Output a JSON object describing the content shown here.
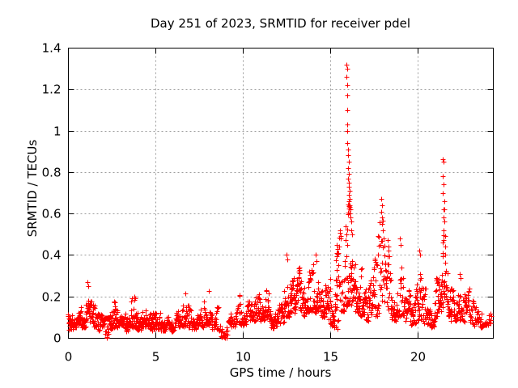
{
  "chart_data": {
    "type": "scatter",
    "title": "Day 251 of 2023, SRMTID for receiver pdel",
    "xlabel": "GPS time / hours",
    "ylabel": "SRMTID / TECUs",
    "xlim": [
      0,
      24.3
    ],
    "ylim": [
      0,
      1.4
    ],
    "xticks": [
      {
        "v": 0,
        "label": "0"
      },
      {
        "v": 5,
        "label": "5"
      },
      {
        "v": 10,
        "label": "10"
      },
      {
        "v": 15,
        "label": "15"
      },
      {
        "v": 20,
        "label": "20"
      }
    ],
    "yticks": [
      {
        "v": 0,
        "label": "0"
      },
      {
        "v": 0.2,
        "label": "0.2"
      },
      {
        "v": 0.4,
        "label": "0.4"
      },
      {
        "v": 0.6,
        "label": "0.6"
      },
      {
        "v": 0.8,
        "label": "0.8"
      },
      {
        "v": 1,
        "label": "1"
      },
      {
        "v": 1.2,
        "label": "1.2"
      },
      {
        "v": 1.4,
        "label": "1.4"
      }
    ],
    "grid": true,
    "legend": "none",
    "colors": {
      "marker": "#ff0000",
      "axis": "#000000",
      "grid": "#9b9b9b",
      "background": "#ffffff",
      "text": "#000000"
    },
    "marker": {
      "shape": "plus",
      "size": 7
    },
    "series": [
      {
        "name": "SRMTID",
        "walks": 2,
        "seed": 20230911,
        "band_bins": [
          [
            0.0,
            0.3,
            0.04,
            0.16,
            28
          ],
          [
            0.3,
            0.65,
            0.05,
            0.15,
            30
          ],
          [
            0.65,
            1.0,
            0.05,
            0.18,
            30
          ],
          [
            1.0,
            1.35,
            0.07,
            0.26,
            30
          ],
          [
            1.35,
            1.7,
            0.05,
            0.16,
            30
          ],
          [
            1.7,
            2.05,
            0.03,
            0.12,
            28
          ],
          [
            2.05,
            2.35,
            0.01,
            0.1,
            24
          ],
          [
            2.35,
            2.6,
            0.04,
            0.15,
            26
          ],
          [
            2.6,
            2.85,
            0.05,
            0.21,
            28
          ],
          [
            2.85,
            3.2,
            0.04,
            0.13,
            30
          ],
          [
            3.2,
            3.5,
            0.03,
            0.12,
            28
          ],
          [
            3.5,
            3.85,
            0.05,
            0.2,
            30
          ],
          [
            3.85,
            4.2,
            0.04,
            0.14,
            30
          ],
          [
            4.2,
            4.65,
            0.05,
            0.2,
            32
          ],
          [
            4.65,
            4.95,
            0.03,
            0.12,
            28
          ],
          [
            4.95,
            5.3,
            0.04,
            0.16,
            30
          ],
          [
            5.3,
            5.7,
            0.03,
            0.13,
            30
          ],
          [
            5.7,
            6.1,
            0.03,
            0.11,
            30
          ],
          [
            6.1,
            6.5,
            0.04,
            0.13,
            30
          ],
          [
            6.5,
            6.95,
            0.05,
            0.21,
            32
          ],
          [
            6.95,
            7.35,
            0.04,
            0.14,
            30
          ],
          [
            7.35,
            7.75,
            0.05,
            0.17,
            30
          ],
          [
            7.75,
            8.2,
            0.06,
            0.22,
            32
          ],
          [
            8.2,
            8.6,
            0.04,
            0.15,
            28
          ],
          [
            8.6,
            9.15,
            0.0,
            0.1,
            20
          ],
          [
            9.15,
            9.6,
            0.05,
            0.16,
            26
          ],
          [
            9.6,
            10.05,
            0.06,
            0.22,
            30
          ],
          [
            10.05,
            10.45,
            0.06,
            0.18,
            30
          ],
          [
            10.45,
            10.85,
            0.08,
            0.23,
            32
          ],
          [
            10.85,
            11.25,
            0.07,
            0.21,
            32
          ],
          [
            11.25,
            11.6,
            0.08,
            0.23,
            30
          ],
          [
            11.6,
            11.95,
            0.04,
            0.16,
            30
          ],
          [
            11.95,
            12.35,
            0.07,
            0.2,
            30
          ],
          [
            12.35,
            12.7,
            0.1,
            0.38,
            30
          ],
          [
            12.7,
            13.0,
            0.12,
            0.3,
            30
          ],
          [
            13.0,
            13.3,
            0.13,
            0.35,
            30
          ],
          [
            13.3,
            13.65,
            0.1,
            0.28,
            30
          ],
          [
            13.65,
            14.0,
            0.12,
            0.33,
            30
          ],
          [
            14.0,
            14.35,
            0.12,
            0.36,
            30
          ],
          [
            14.35,
            14.7,
            0.1,
            0.33,
            30
          ],
          [
            14.7,
            15.0,
            0.08,
            0.38,
            28
          ],
          [
            15.0,
            15.25,
            0.05,
            0.18,
            22
          ],
          [
            15.25,
            15.45,
            0.04,
            0.45,
            24
          ],
          [
            15.45,
            15.8,
            0.12,
            0.52,
            26
          ],
          [
            15.8,
            16.1,
            0.15,
            0.65,
            32
          ],
          [
            16.1,
            16.4,
            0.15,
            0.55,
            32
          ],
          [
            16.4,
            16.7,
            0.12,
            0.42,
            30
          ],
          [
            16.7,
            17.0,
            0.1,
            0.35,
            28
          ],
          [
            17.0,
            17.35,
            0.08,
            0.28,
            28
          ],
          [
            17.35,
            17.7,
            0.1,
            0.4,
            28
          ],
          [
            17.7,
            18.1,
            0.12,
            0.6,
            30
          ],
          [
            18.1,
            18.45,
            0.1,
            0.45,
            30
          ],
          [
            18.45,
            18.8,
            0.08,
            0.28,
            28
          ],
          [
            18.8,
            19.2,
            0.1,
            0.45,
            30
          ],
          [
            19.2,
            19.55,
            0.07,
            0.28,
            28
          ],
          [
            19.55,
            19.9,
            0.06,
            0.22,
            28
          ],
          [
            19.9,
            20.25,
            0.08,
            0.4,
            30
          ],
          [
            20.25,
            20.65,
            0.06,
            0.24,
            28
          ],
          [
            20.65,
            21.0,
            0.05,
            0.2,
            28
          ],
          [
            21.0,
            21.3,
            0.08,
            0.3,
            28
          ],
          [
            21.3,
            21.6,
            0.12,
            0.5,
            28
          ],
          [
            21.6,
            21.9,
            0.1,
            0.38,
            28
          ],
          [
            21.9,
            22.25,
            0.08,
            0.28,
            28
          ],
          [
            22.25,
            22.6,
            0.08,
            0.3,
            28
          ],
          [
            22.6,
            22.95,
            0.07,
            0.24,
            26
          ],
          [
            22.95,
            23.35,
            0.06,
            0.18,
            26
          ],
          [
            23.35,
            23.75,
            0.05,
            0.15,
            24
          ],
          [
            23.75,
            24.2,
            0.06,
            0.13,
            20
          ]
        ],
        "peak_points": [
          [
            15.93,
            1.32
          ],
          [
            15.95,
            1.3
          ],
          [
            15.94,
            1.26
          ],
          [
            15.96,
            1.22
          ],
          [
            15.95,
            1.17
          ],
          [
            15.97,
            1.1
          ],
          [
            15.96,
            1.03
          ],
          [
            15.98,
            1.0
          ],
          [
            15.99,
            0.94
          ],
          [
            16.02,
            0.91
          ],
          [
            16.0,
            0.88
          ],
          [
            16.04,
            0.85
          ],
          [
            16.03,
            0.82
          ],
          [
            16.06,
            0.79
          ],
          [
            16.01,
            0.77
          ],
          [
            16.08,
            0.75
          ],
          [
            16.05,
            0.73
          ],
          [
            16.09,
            0.71
          ],
          [
            16.07,
            0.69
          ],
          [
            16.11,
            0.67
          ],
          [
            16.04,
            0.66
          ],
          [
            16.13,
            0.64
          ],
          [
            16.15,
            0.62
          ],
          [
            16.12,
            0.6
          ],
          [
            16.17,
            0.58
          ],
          [
            16.19,
            0.56
          ],
          [
            15.88,
            0.54
          ],
          [
            15.9,
            0.5
          ],
          [
            15.86,
            0.47
          ],
          [
            16.22,
            0.52
          ],
          [
            16.25,
            0.5
          ],
          [
            15.55,
            0.52
          ],
          [
            15.6,
            0.48
          ],
          [
            15.35,
            0.45
          ],
          [
            15.38,
            0.41
          ],
          [
            17.92,
            0.67
          ],
          [
            17.95,
            0.64
          ],
          [
            17.9,
            0.61
          ],
          [
            17.97,
            0.58
          ],
          [
            17.94,
            0.55
          ],
          [
            18.0,
            0.52
          ],
          [
            18.28,
            0.47
          ],
          [
            18.32,
            0.44
          ],
          [
            18.98,
            0.48
          ],
          [
            19.03,
            0.45
          ],
          [
            20.08,
            0.42
          ],
          [
            20.12,
            0.4
          ],
          [
            12.5,
            0.4
          ],
          [
            12.54,
            0.38
          ],
          [
            14.18,
            0.4
          ],
          [
            14.22,
            0.37
          ],
          [
            21.44,
            0.86
          ],
          [
            21.47,
            0.85
          ],
          [
            21.45,
            0.78
          ],
          [
            21.48,
            0.74
          ],
          [
            21.44,
            0.7
          ],
          [
            21.5,
            0.66
          ],
          [
            21.46,
            0.62
          ],
          [
            21.51,
            0.62
          ],
          [
            21.49,
            0.58
          ],
          [
            21.53,
            0.56
          ],
          [
            21.47,
            0.52
          ],
          [
            21.55,
            0.49
          ],
          [
            21.41,
            0.46
          ],
          [
            21.57,
            0.44
          ],
          [
            2.2,
            0.005
          ],
          [
            2.24,
            0.0
          ],
          [
            8.85,
            0.01
          ],
          [
            9.0,
            0.0
          ],
          [
            9.02,
            0.02
          ],
          [
            22.4,
            0.31
          ],
          [
            22.45,
            0.29
          ],
          [
            1.12,
            0.27
          ],
          [
            1.18,
            0.25
          ],
          [
            6.7,
            0.215
          ],
          [
            8.05,
            0.225
          ]
        ]
      }
    ]
  }
}
